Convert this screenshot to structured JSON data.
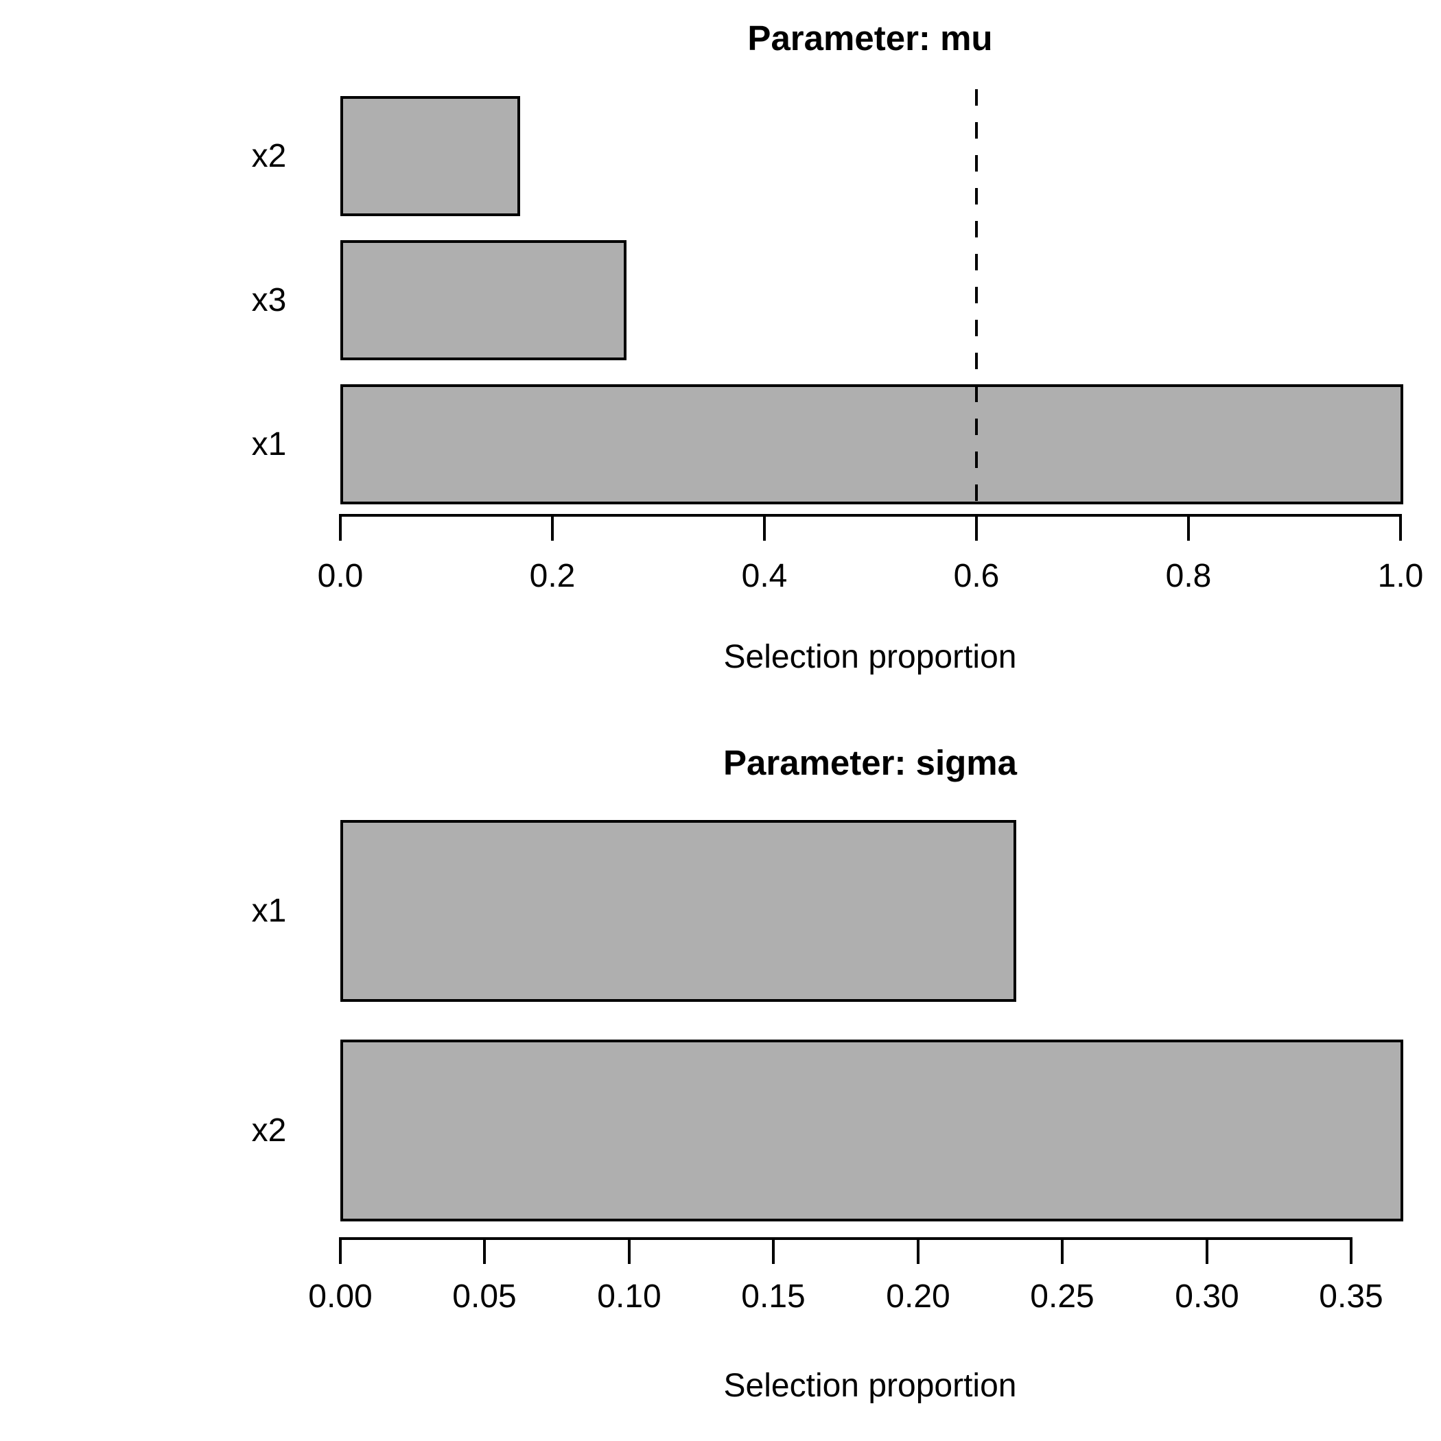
{
  "chart_data": [
    {
      "type": "bar",
      "orientation": "horizontal",
      "title": "Parameter: mu",
      "xlabel": "Selection proportion",
      "categories": [
        "x2",
        "x3",
        "x1"
      ],
      "values": [
        0.167,
        0.267,
        1.0
      ],
      "xlim": [
        0.0,
        1.0
      ],
      "xticks": [
        0.0,
        0.2,
        0.4,
        0.6,
        0.8,
        1.0
      ],
      "xtick_labels": [
        "0.0",
        "0.2",
        "0.4",
        "0.6",
        "0.8",
        "1.0"
      ],
      "threshold_line": 0.6,
      "threshold_style": "dashed",
      "bar_fill": "#afafaf",
      "bar_border": "#000000",
      "grid": false,
      "legend": false
    },
    {
      "type": "bar",
      "orientation": "horizontal",
      "title": "Parameter: sigma",
      "xlabel": "Selection proportion",
      "categories": [
        "x1",
        "x2"
      ],
      "values": [
        0.233,
        0.367
      ],
      "xlim": [
        0.0,
        0.37
      ],
      "xticks": [
        0.0,
        0.05,
        0.1,
        0.15,
        0.2,
        0.25,
        0.3,
        0.35
      ],
      "xtick_labels": [
        "0.00",
        "0.05",
        "0.10",
        "0.15",
        "0.20",
        "0.25",
        "0.30",
        "0.35"
      ],
      "threshold_line": null,
      "threshold_style": null,
      "bar_fill": "#afafaf",
      "bar_border": "#000000",
      "grid": false,
      "legend": false
    }
  ]
}
